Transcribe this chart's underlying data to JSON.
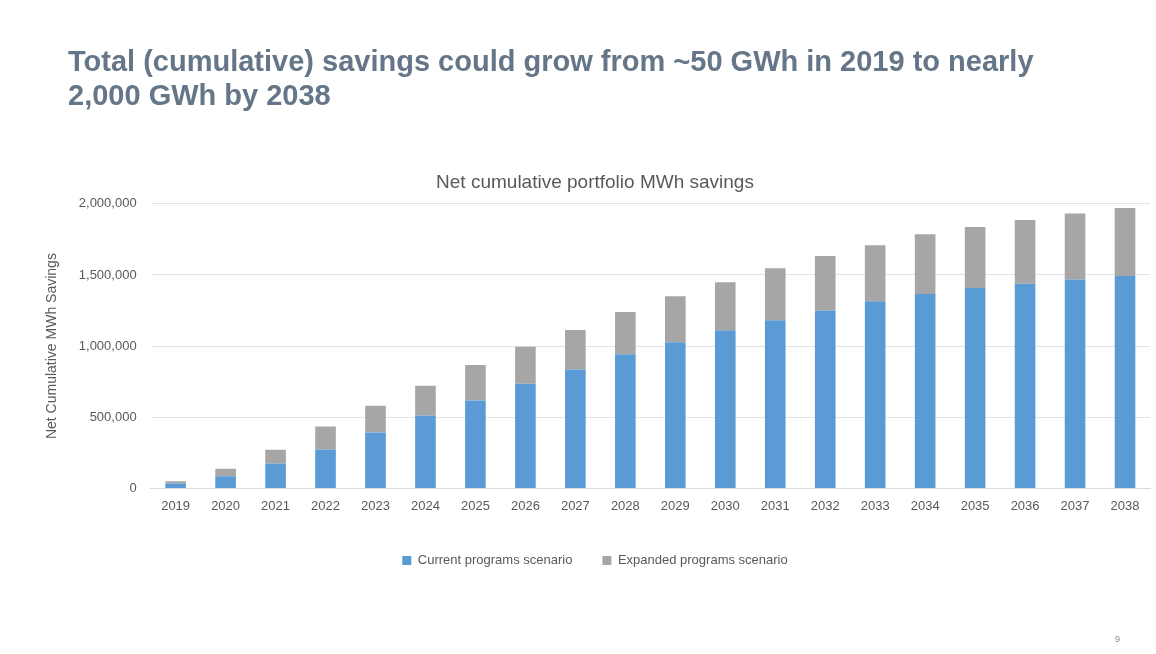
{
  "chart_data": {
    "type": "bar",
    "title": "Total (cumulative) savings could grow from ~50 GWh in 2019 to nearly 2,000 GWh by 2038",
    "subtitle": "Net cumulative portfolio MWh savings",
    "ylabel": "Net Cumulative MWh Savings",
    "categories": [
      "2019",
      "2020",
      "2021",
      "2022",
      "2023",
      "2024",
      "2025",
      "2026",
      "2027",
      "2028",
      "2029",
      "2030",
      "2031",
      "2032",
      "2033",
      "2034",
      "2035",
      "2036",
      "2037",
      "2038"
    ],
    "series": [
      {
        "name": "Current programs scenario",
        "color": "#5b9bd5",
        "values": [
          35000,
          86000,
          175000,
          274000,
          392000,
          511000,
          617000,
          736000,
          835000,
          943000,
          1027000,
          1111000,
          1182000,
          1251000,
          1315000,
          1367000,
          1409000,
          1438000,
          1468000,
          1493000
        ]
      },
      {
        "name": "Expanded programs scenario",
        "color": "#a6a6a6",
        "values": [
          15000,
          52000,
          96000,
          161000,
          189000,
          210000,
          250000,
          260000,
          279000,
          296000,
          323000,
          337000,
          365000,
          382000,
          394000,
          419000,
          428000,
          449000,
          463000,
          477000
        ]
      }
    ],
    "stacked": true,
    "ylim": [
      0,
      2000000
    ],
    "yticks": [
      0,
      {
        "value": 500000,
        "label": "500,000"
      },
      {
        "value": 1000000,
        "label": "1,000,000"
      },
      {
        "value": 1500000,
        "label": "1,500,000"
      },
      {
        "value": 2000000,
        "label": "2,000,000"
      }
    ],
    "grid": "y",
    "legend": "bottom",
    "annotations": [
      "9"
    ]
  }
}
